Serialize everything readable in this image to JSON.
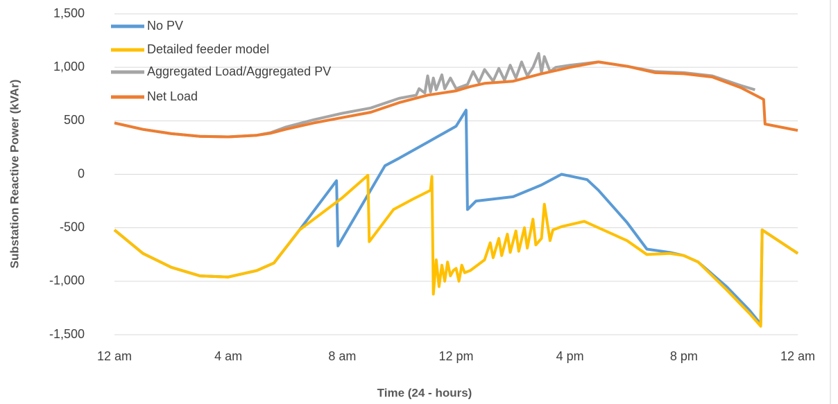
{
  "chart_data": {
    "type": "line",
    "x_label": "Time (24 - hours)",
    "y_label": "Substation Reactive Power (kVAr)",
    "xlim": [
      0,
      24
    ],
    "xticks": [
      {
        "value": 0,
        "label": "12 am"
      },
      {
        "value": 4,
        "label": "4 am"
      },
      {
        "value": 8,
        "label": "8 am"
      },
      {
        "value": 12,
        "label": "12 pm"
      },
      {
        "value": 16,
        "label": "4 pm"
      },
      {
        "value": 20,
        "label": "8 pm"
      },
      {
        "value": 24,
        "label": "12 am"
      }
    ],
    "ylim": [
      -1500,
      1500
    ],
    "yticks": [
      {
        "value": 1500,
        "label": "1,500"
      },
      {
        "value": 1000,
        "label": "1,000"
      },
      500,
      0,
      -500,
      {
        "value": -1000,
        "label": "-1,000"
      },
      {
        "value": -1500,
        "label": "-1,500"
      }
    ],
    "grid": true,
    "legend": "top-left",
    "series": [
      {
        "name": "No PV",
        "color": "#5b9bd5",
        "x": [
          0,
          1,
          2,
          3,
          4,
          5,
          5.6,
          6.5,
          7.8,
          7.85,
          9.5,
          10,
          11,
          12,
          12.35,
          12.4,
          12.7,
          14,
          15,
          15.7,
          16.6,
          17,
          18,
          18.7,
          19.5,
          20,
          20.5,
          21.5,
          22.3,
          22.7,
          22.75,
          24
        ],
        "values": [
          -520,
          -740,
          -870,
          -950,
          -960,
          -900,
          -830,
          -520,
          -60,
          -670,
          80,
          150,
          300,
          450,
          600,
          -330,
          -250,
          -210,
          -100,
          0,
          -50,
          -150,
          -450,
          -700,
          -730,
          -760,
          -820,
          -1050,
          -1270,
          -1400,
          -520,
          -740
        ]
      },
      {
        "name": "Detailed feeder model",
        "color": "#ffc000",
        "x": [
          0,
          1,
          2,
          3,
          4,
          5,
          5.6,
          6.5,
          8,
          8.9,
          8.95,
          9.8,
          10.5,
          11.1,
          11.15,
          11.2,
          11.3,
          11.4,
          11.5,
          11.6,
          11.7,
          11.8,
          11.9,
          12,
          12.1,
          12.2,
          12.3,
          12.5,
          13,
          13.2,
          13.3,
          13.5,
          13.6,
          13.8,
          13.9,
          14.1,
          14.2,
          14.4,
          14.5,
          14.7,
          14.8,
          15,
          15.1,
          15.3,
          15.4,
          15.7,
          16.5,
          17,
          18,
          18.7,
          19.5,
          20,
          20.5,
          21.5,
          22.3,
          22.7,
          22.75,
          24
        ],
        "values": [
          -520,
          -740,
          -870,
          -950,
          -960,
          -900,
          -830,
          -520,
          -220,
          -10,
          -630,
          -330,
          -230,
          -150,
          -20,
          -1120,
          -800,
          -1050,
          -850,
          -1000,
          -820,
          -950,
          -900,
          -880,
          -1000,
          -850,
          -920,
          -900,
          -800,
          -640,
          -780,
          -600,
          -760,
          -560,
          -730,
          -530,
          -720,
          -500,
          -690,
          -420,
          -660,
          -600,
          -280,
          -620,
          -520,
          -490,
          -440,
          -500,
          -620,
          -750,
          -740,
          -760,
          -820,
          -1080,
          -1300,
          -1420,
          -520,
          -740
        ]
      },
      {
        "name": "Aggregated Load/Aggregated PV",
        "color": "#a5a5a5",
        "x": [
          0,
          1,
          2,
          3,
          4,
          5,
          5.5,
          6,
          7,
          8,
          9,
          10,
          10.6,
          10.7,
          10.9,
          11,
          11.1,
          11.2,
          11.3,
          11.5,
          11.6,
          11.8,
          12,
          12.4,
          12.6,
          12.8,
          13,
          13.3,
          13.5,
          13.7,
          13.9,
          14.1,
          14.3,
          14.5,
          14.7,
          14.9,
          15,
          15.1,
          15.3,
          15.5,
          16,
          17,
          18,
          19,
          20,
          21,
          22,
          22.5
        ],
        "values": [
          480,
          420,
          380,
          355,
          350,
          365,
          390,
          440,
          510,
          570,
          620,
          710,
          740,
          800,
          760,
          920,
          770,
          900,
          790,
          930,
          800,
          900,
          800,
          840,
          960,
          860,
          980,
          870,
          990,
          880,
          1020,
          900,
          1050,
          920,
          1000,
          1130,
          950,
          1100,
          960,
          1000,
          1020,
          1050,
          1010,
          960,
          950,
          920,
          830,
          790
        ]
      },
      {
        "name": "Net Load",
        "color": "#ed7d31",
        "x": [
          0,
          1,
          2,
          3,
          4,
          5,
          5.5,
          6,
          7,
          8,
          9,
          10,
          11,
          12,
          12.5,
          13,
          14,
          15,
          16,
          17,
          18,
          19,
          20,
          21,
          22,
          22.8,
          22.85,
          24
        ],
        "values": [
          480,
          420,
          380,
          355,
          350,
          365,
          385,
          420,
          480,
          530,
          580,
          670,
          740,
          780,
          820,
          850,
          870,
          940,
          1000,
          1050,
          1010,
          950,
          940,
          910,
          810,
          700,
          470,
          410
        ]
      }
    ]
  }
}
